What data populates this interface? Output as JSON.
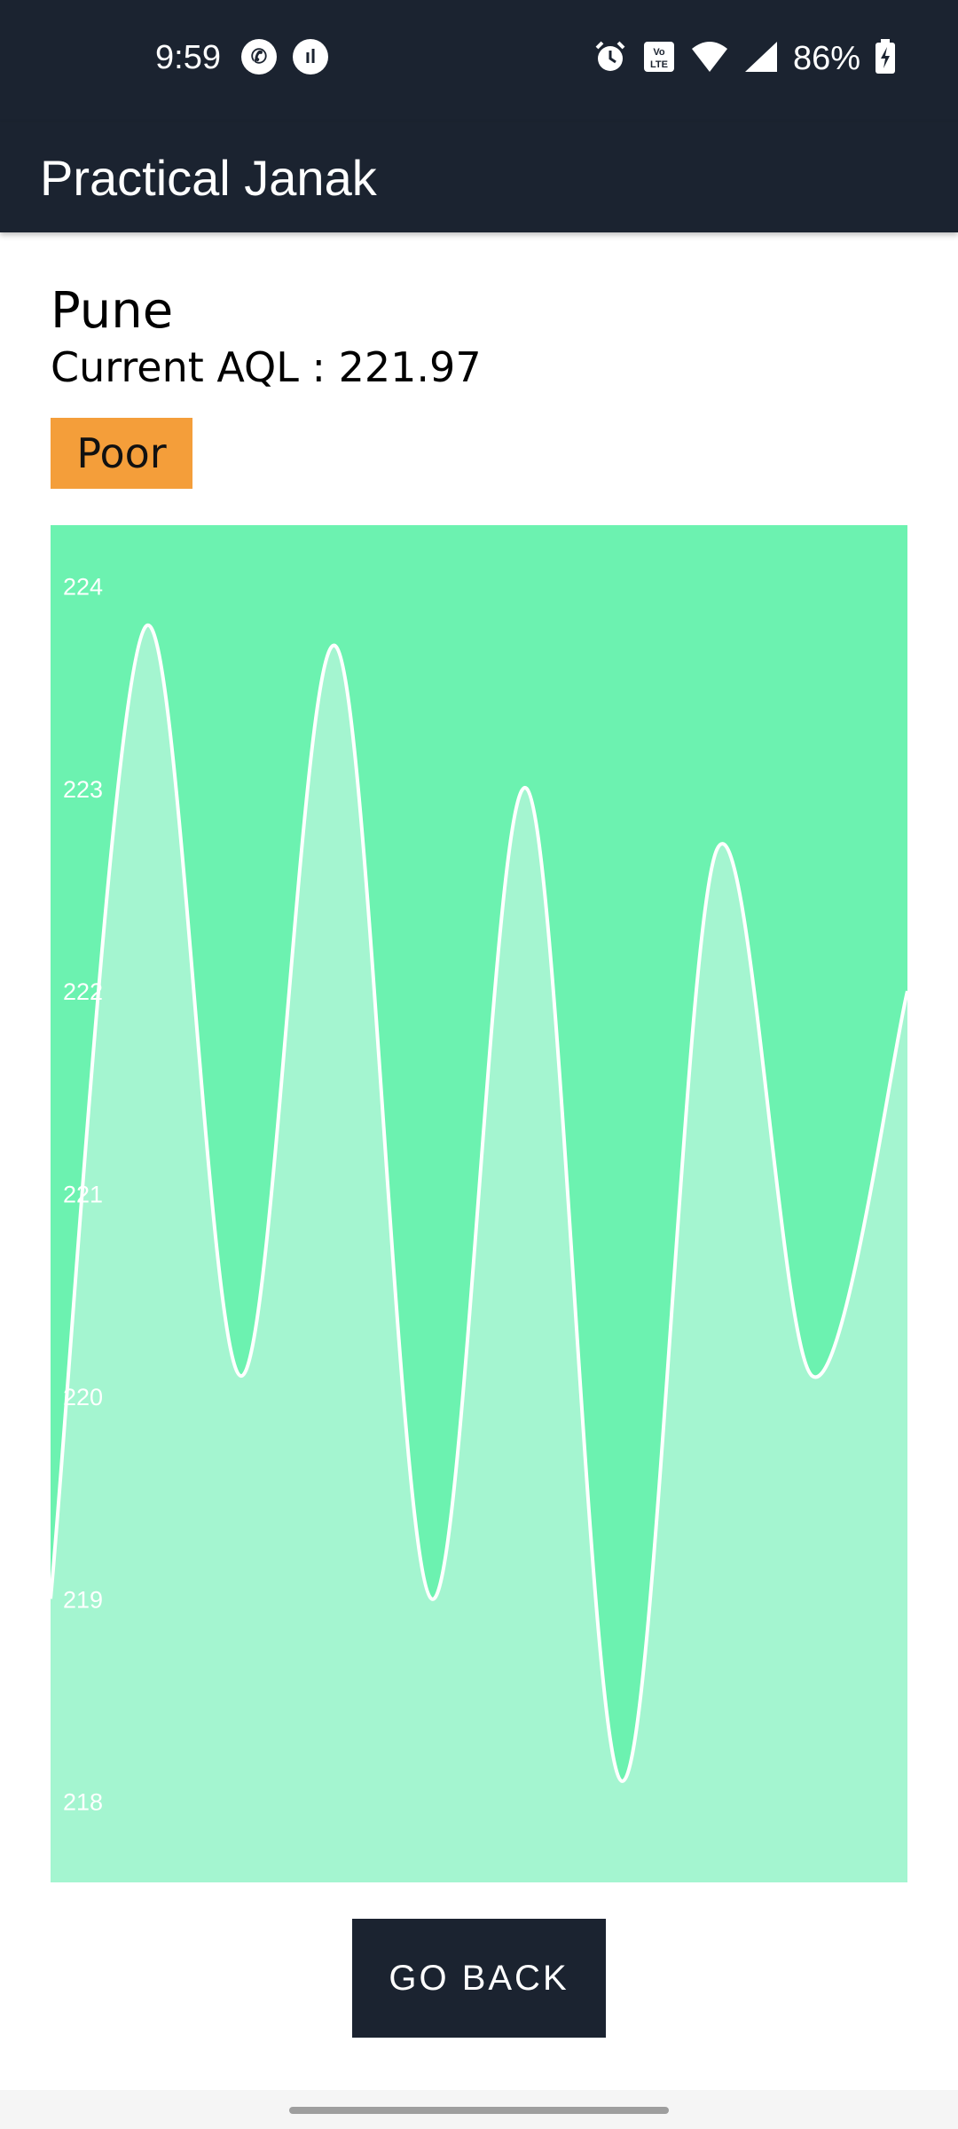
{
  "status_bar": {
    "time": "9:59",
    "battery": "86%",
    "left_icons": [
      "whatsapp-icon",
      "app-notification-icon"
    ],
    "right_icons": [
      "alarm-icon",
      "volte-icon",
      "wifi-icon",
      "signal-icon",
      "battery-charging-icon"
    ]
  },
  "app_bar": {
    "title": "Practical Janak"
  },
  "main": {
    "city": "Pune",
    "current_aql": "Current AQL : 221.97",
    "status_badge": "Poor",
    "badge_color": "#f49e3a"
  },
  "chart_data": {
    "type": "area",
    "title": "",
    "xlabel": "",
    "ylabel": "",
    "ylim": [
      217.6,
      224.3
    ],
    "y_ticks": [
      224,
      223,
      222,
      221,
      220,
      219,
      218
    ],
    "series": [
      {
        "values": [
          219.0,
          223.8,
          220.1,
          223.7,
          219.0,
          223.0,
          218.1,
          222.7,
          220.1,
          222.0
        ]
      }
    ],
    "background_color": "#6cf2b0",
    "fill_color": "#a4f5d0",
    "line_color": "#ffffff"
  },
  "footer": {
    "go_back_label": "GO BACK"
  }
}
